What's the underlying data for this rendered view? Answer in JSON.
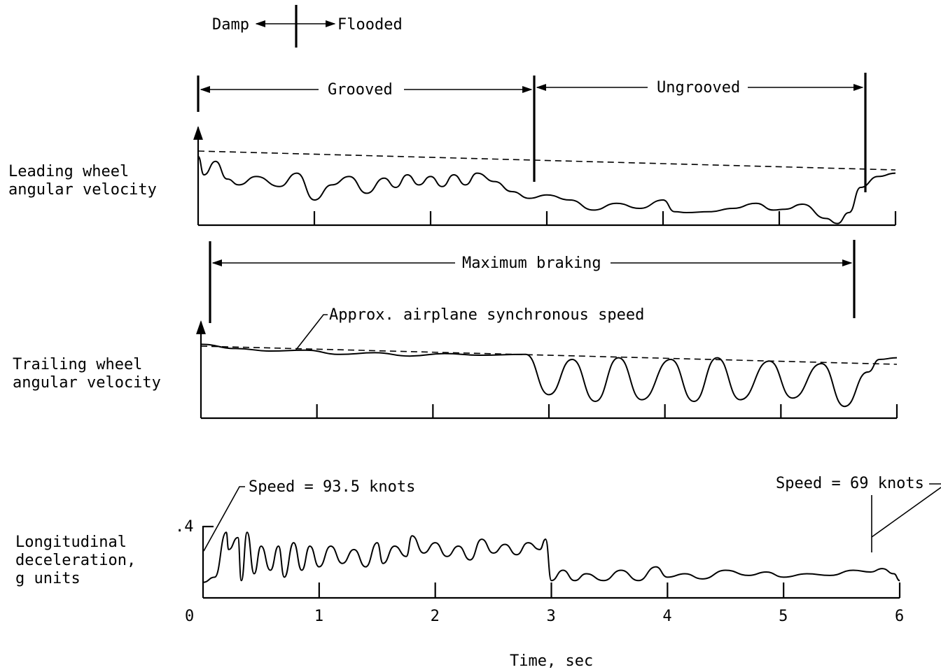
{
  "chart_data": {
    "type": "line",
    "xlabel": "Time, sec",
    "x_ticks": [
      "0",
      "1",
      "2",
      "3",
      "4",
      "5",
      "6"
    ],
    "xlim": [
      0,
      6
    ],
    "panels": [
      {
        "ylabel_lines": [
          "Leading wheel",
          "angular velocity"
        ],
        "reference_line": "dashed",
        "series": [
          {
            "name": "",
            "x": [
              0,
              0.05,
              0.15,
              0.25,
              0.35,
              0.5,
              0.7,
              0.85,
              1.0,
              1.15,
              1.3,
              1.45,
              1.6,
              1.7,
              1.8,
              1.9,
              2.0,
              2.1,
              2.2,
              2.3,
              2.4,
              2.55,
              2.7,
              2.85,
              3.0,
              3.2,
              3.4,
              3.6,
              3.8,
              4.0,
              4.1,
              4.2,
              4.4,
              4.6,
              4.8,
              4.95,
              5.05,
              5.2,
              5.4,
              5.5,
              5.6,
              5.7,
              5.85,
              6.0
            ],
            "y": [
              0.82,
              0.6,
              0.76,
              0.55,
              0.48,
              0.58,
              0.46,
              0.62,
              0.3,
              0.48,
              0.58,
              0.38,
              0.56,
              0.45,
              0.6,
              0.48,
              0.58,
              0.46,
              0.6,
              0.48,
              0.62,
              0.52,
              0.4,
              0.32,
              0.36,
              0.3,
              0.18,
              0.26,
              0.2,
              0.3,
              0.16,
              0.15,
              0.16,
              0.2,
              0.26,
              0.18,
              0.19,
              0.25,
              0.08,
              0.02,
              0.15,
              0.45,
              0.58,
              0.62
            ]
          }
        ]
      },
      {
        "ylabel_lines": [
          "Trailing wheel",
          "angular velocity"
        ],
        "reference_line": "dashed",
        "series": [
          {
            "name": "",
            "x": [
              0,
              0.3,
              0.6,
              0.9,
              1.2,
              1.5,
              1.8,
              2.1,
              2.4,
              2.8,
              3.0,
              3.2,
              3.4,
              3.6,
              3.8,
              4.05,
              4.25,
              4.45,
              4.65,
              4.9,
              5.1,
              5.35,
              5.55,
              5.75,
              5.85,
              6.0
            ],
            "y": [
              0.88,
              0.83,
              0.8,
              0.81,
              0.76,
              0.78,
              0.74,
              0.77,
              0.75,
              0.76,
              0.28,
              0.7,
              0.2,
              0.72,
              0.22,
              0.7,
              0.2,
              0.72,
              0.22,
              0.68,
              0.24,
              0.65,
              0.14,
              0.55,
              0.7,
              0.72
            ]
          }
        ]
      },
      {
        "ylabel_lines": [
          "Longitudinal",
          "deceleration,",
          "g units"
        ],
        "y_ticks": [
          ".4"
        ],
        "ylim": [
          0,
          0.45
        ],
        "series": [
          {
            "name": "",
            "x": [
              0,
              0.1,
              0.2,
              0.22,
              0.3,
              0.33,
              0.38,
              0.44,
              0.5,
              0.58,
              0.65,
              0.7,
              0.78,
              0.85,
              0.92,
              1.0,
              1.1,
              1.2,
              1.3,
              1.4,
              1.5,
              1.55,
              1.65,
              1.75,
              1.8,
              1.9,
              2.0,
              2.1,
              2.2,
              2.3,
              2.4,
              2.5,
              2.6,
              2.7,
              2.8,
              2.9,
              2.95,
              3.0,
              3.1,
              3.2,
              3.3,
              3.45,
              3.6,
              3.75,
              3.9,
              4.0,
              4.15,
              4.3,
              4.5,
              4.7,
              4.85,
              5.0,
              5.2,
              5.4,
              5.6,
              5.75,
              5.85,
              5.95,
              6.0
            ],
            "y": [
              0.09,
              0.12,
              0.38,
              0.28,
              0.35,
              0.1,
              0.38,
              0.14,
              0.3,
              0.16,
              0.3,
              0.12,
              0.32,
              0.16,
              0.3,
              0.18,
              0.3,
              0.2,
              0.28,
              0.18,
              0.32,
              0.2,
              0.3,
              0.24,
              0.36,
              0.26,
              0.32,
              0.24,
              0.3,
              0.22,
              0.34,
              0.26,
              0.31,
              0.25,
              0.32,
              0.28,
              0.34,
              0.1,
              0.16,
              0.1,
              0.14,
              0.1,
              0.16,
              0.1,
              0.18,
              0.12,
              0.14,
              0.11,
              0.16,
              0.13,
              0.15,
              0.12,
              0.14,
              0.13,
              0.16,
              0.15,
              0.17,
              0.14,
              0.1
            ]
          }
        ]
      }
    ]
  },
  "annotations": {
    "damp": "Damp",
    "flooded": "Flooded",
    "grooved": "Grooved",
    "ungrooved": "Ungrooved",
    "max_braking": "Maximum braking",
    "sync_speed": "Approx. airplane synchronous speed",
    "speed_start": "Speed = 93.5 knots",
    "speed_end": "Speed = 69 knots"
  }
}
